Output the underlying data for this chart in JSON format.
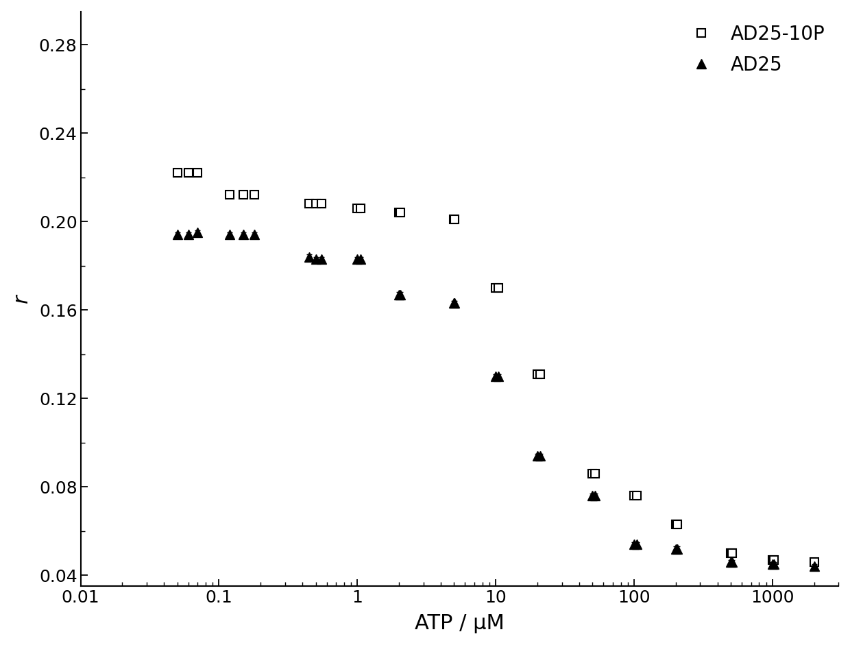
{
  "title": "",
  "xlabel": "ATP / μM",
  "ylabel": "r",
  "xlim": [
    0.01,
    3000
  ],
  "ylim": [
    0.035,
    0.295
  ],
  "yticks": [
    0.04,
    0.08,
    0.12,
    0.16,
    0.2,
    0.24,
    0.28
  ],
  "xtick_vals": [
    0.01,
    0.1,
    1,
    10,
    100,
    1000
  ],
  "xtick_labels": [
    "0.01",
    "0.1",
    "1",
    "10",
    "100",
    "1000"
  ],
  "background_color": "#ffffff",
  "ad25_10p_x": [
    0.05,
    0.06,
    0.07,
    0.12,
    0.15,
    0.18,
    0.45,
    0.5,
    0.55,
    1.0,
    1.05,
    2.0,
    2.05,
    5.0,
    5.05,
    10.0,
    10.5,
    20.0,
    21.0,
    50.0,
    52.0,
    100.0,
    105.0,
    200.0,
    205.0,
    500.0,
    510.0,
    1000.0,
    1020.0,
    2000.0
  ],
  "ad25_10p_y": [
    0.222,
    0.222,
    0.222,
    0.212,
    0.212,
    0.212,
    0.208,
    0.208,
    0.208,
    0.206,
    0.206,
    0.204,
    0.204,
    0.201,
    0.201,
    0.17,
    0.17,
    0.131,
    0.131,
    0.086,
    0.086,
    0.076,
    0.076,
    0.063,
    0.063,
    0.05,
    0.05,
    0.047,
    0.047,
    0.046
  ],
  "ad25_x": [
    0.05,
    0.06,
    0.07,
    0.12,
    0.15,
    0.18,
    0.45,
    0.5,
    0.55,
    1.0,
    1.05,
    2.0,
    2.05,
    5.0,
    5.05,
    10.0,
    10.5,
    20.0,
    21.0,
    50.0,
    52.0,
    100.0,
    105.0,
    200.0,
    205.0,
    500.0,
    510.0,
    1000.0,
    1020.0,
    2000.0
  ],
  "ad25_y": [
    0.194,
    0.194,
    0.195,
    0.194,
    0.194,
    0.194,
    0.184,
    0.183,
    0.183,
    0.183,
    0.183,
    0.167,
    0.167,
    0.163,
    0.163,
    0.13,
    0.13,
    0.094,
    0.094,
    0.076,
    0.076,
    0.054,
    0.054,
    0.052,
    0.052,
    0.046,
    0.046,
    0.045,
    0.045,
    0.044
  ],
  "ad25_10p_yerr": [
    0.001,
    0.001,
    0.001,
    0.001,
    0.001,
    0.001,
    0.001,
    0.001,
    0.001,
    0.001,
    0.001,
    0.001,
    0.001,
    0.001,
    0.001,
    0.001,
    0.001,
    0.001,
    0.001,
    0.001,
    0.001,
    0.001,
    0.001,
    0.001,
    0.001,
    0.001,
    0.001,
    0.001,
    0.001,
    0.001
  ],
  "ad25_yerr": [
    0.001,
    0.001,
    0.001,
    0.001,
    0.001,
    0.001,
    0.001,
    0.001,
    0.001,
    0.001,
    0.001,
    0.001,
    0.001,
    0.001,
    0.001,
    0.001,
    0.001,
    0.001,
    0.001,
    0.001,
    0.001,
    0.001,
    0.001,
    0.001,
    0.001,
    0.001,
    0.001,
    0.001,
    0.001,
    0.001
  ],
  "marker_size_square": 8,
  "marker_size_triangle": 10,
  "legend_labels": [
    "AD25-10P",
    "AD25"
  ],
  "font_size": 20,
  "tick_font_size": 18,
  "label_font_size": 22
}
